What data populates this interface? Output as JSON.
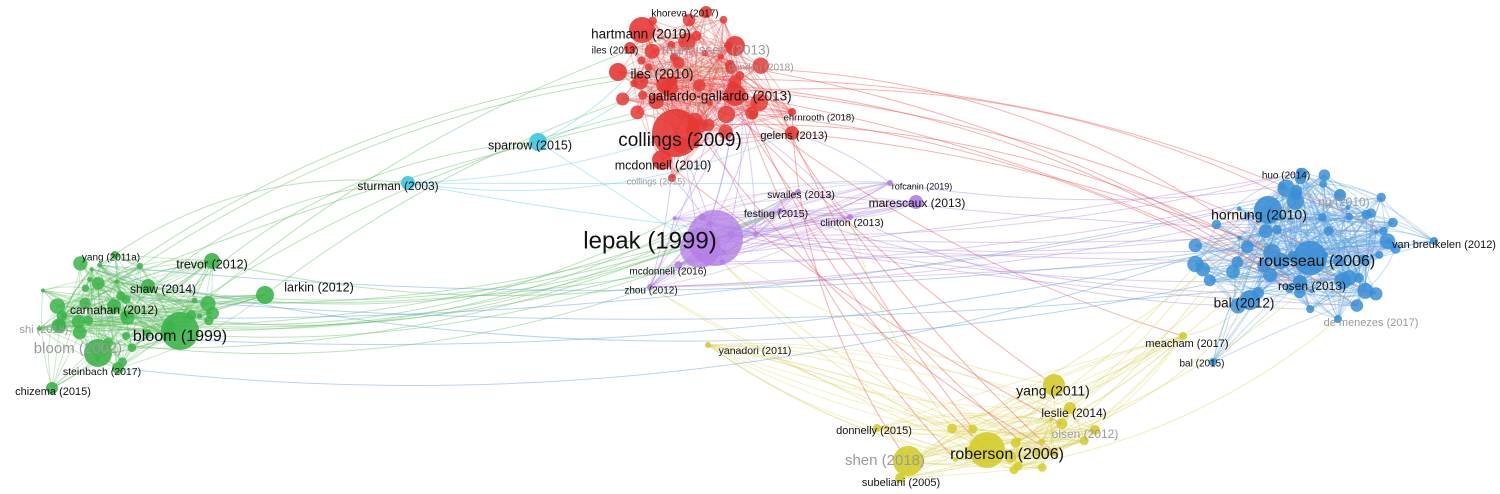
{
  "diagram": {
    "clusters": [
      {
        "id": "red",
        "color": "#e53935",
        "edge_color": "#ef5350"
      },
      {
        "id": "purple",
        "color": "#b37de6",
        "edge_color": "#b48be6"
      },
      {
        "id": "green",
        "color": "#3cb44a",
        "edge_color": "#66c066"
      },
      {
        "id": "blue",
        "color": "#3a8fd6",
        "edge_color": "#5aa0de"
      },
      {
        "id": "yellow",
        "color": "#d4cc2a",
        "edge_color": "#dcd560"
      },
      {
        "id": "cyan",
        "color": "#3ec6e0",
        "edge_color": "#66d0e6"
      }
    ],
    "nodes": [
      {
        "label": "lepak (1999)",
        "cluster": "purple",
        "weight": 10
      },
      {
        "label": "mcdonnell (2016)",
        "cluster": "purple",
        "weight": 7
      },
      {
        "label": "marescaux (2013)",
        "cluster": "purple",
        "weight": 2
      },
      {
        "label": "clinton (2013)",
        "cluster": "purple",
        "weight": 1
      },
      {
        "label": "festing (2015)",
        "cluster": "purple",
        "weight": 1
      },
      {
        "label": "swailes (2013)",
        "cluster": "purple",
        "weight": 1
      },
      {
        "label": "rofcanin (2019)",
        "cluster": "purple",
        "weight": 1
      },
      {
        "label": "zhou (2012)",
        "cluster": "purple",
        "weight": 1
      },
      {
        "label": "collings (2009)",
        "cluster": "red",
        "weight": 8
      },
      {
        "label": "hartmann (2010)",
        "cluster": "red",
        "weight": 4
      },
      {
        "label": "gallardo-gallardo (2013)",
        "cluster": "red",
        "weight": 4
      },
      {
        "label": "mcdonnell (2010)",
        "cluster": "red",
        "weight": 3
      },
      {
        "label": "gelens (2013)",
        "cluster": "red",
        "weight": 2
      },
      {
        "label": "khoreva (2017)",
        "cluster": "red",
        "weight": 2
      },
      {
        "label": "iles (2013)",
        "cluster": "red",
        "weight": 2
      },
      {
        "label": "iles (2010)",
        "cluster": "red",
        "weight": 3
      },
      {
        "label": "thunnissen (2013)",
        "cluster": "red",
        "weight": 4
      },
      {
        "label": "dundon (2018)",
        "cluster": "red",
        "weight": 1
      },
      {
        "label": "ehrnrooth (2018)",
        "cluster": "red",
        "weight": 1
      },
      {
        "label": "collings (2015)",
        "cluster": "red",
        "weight": 1
      },
      {
        "label": "sparrow (2015)",
        "cluster": "cyan",
        "weight": 2
      },
      {
        "label": "sturman (2003)",
        "cluster": "cyan",
        "weight": 2
      },
      {
        "label": "bloom (1999)",
        "cluster": "green",
        "weight": 6
      },
      {
        "label": "bloom (2002)",
        "cluster": "green",
        "weight": 5
      },
      {
        "label": "trevor (2012)",
        "cluster": "green",
        "weight": 2
      },
      {
        "label": "larkin (2012)",
        "cluster": "green",
        "weight": 2
      },
      {
        "label": "carnahan (2012)",
        "cluster": "green",
        "weight": 2
      },
      {
        "label": "shaw (2014)",
        "cluster": "green",
        "weight": 2
      },
      {
        "label": "yang (2011a)",
        "cluster": "green",
        "weight": 1
      },
      {
        "label": "shi (2018)",
        "cluster": "green",
        "weight": 1
      },
      {
        "label": "steinbach (2017)",
        "cluster": "green",
        "weight": 1
      },
      {
        "label": "chizema (2015)",
        "cluster": "green",
        "weight": 1
      },
      {
        "label": "hornung (2010)",
        "cluster": "blue",
        "weight": 5
      },
      {
        "label": "rousseau (2006)",
        "cluster": "blue",
        "weight": 6
      },
      {
        "label": "bal (2012)",
        "cluster": "blue",
        "weight": 3
      },
      {
        "label": "rosen (2013)",
        "cluster": "blue",
        "weight": 2
      },
      {
        "label": "huo (2014)",
        "cluster": "blue",
        "weight": 1
      },
      {
        "label": "ng (2010)",
        "cluster": "blue",
        "weight": 2
      },
      {
        "label": "van breukelen (2012)",
        "cluster": "blue",
        "weight": 1
      },
      {
        "label": "de menezes (2017)",
        "cluster": "blue",
        "weight": 1
      },
      {
        "label": "meacham (2017)",
        "cluster": "yellow",
        "weight": 1
      },
      {
        "label": "bal (2015)",
        "cluster": "blue",
        "weight": 1
      },
      {
        "label": "roberson (2006)",
        "cluster": "yellow",
        "weight": 5
      },
      {
        "label": "yang (2011)",
        "cluster": "yellow",
        "weight": 3
      },
      {
        "label": "leslie (2014)",
        "cluster": "yellow",
        "weight": 2
      },
      {
        "label": "olsen (2012)",
        "cluster": "yellow",
        "weight": 2
      },
      {
        "label": "donnelly (2015)",
        "cluster": "yellow",
        "weight": 1
      },
      {
        "label": "shen (2018)",
        "cluster": "yellow",
        "weight": 4
      },
      {
        "label": "subeliani (2005)",
        "cluster": "yellow",
        "weight": 1
      },
      {
        "label": "yanadori (2011)",
        "cluster": "yellow",
        "weight": 1
      }
    ]
  }
}
